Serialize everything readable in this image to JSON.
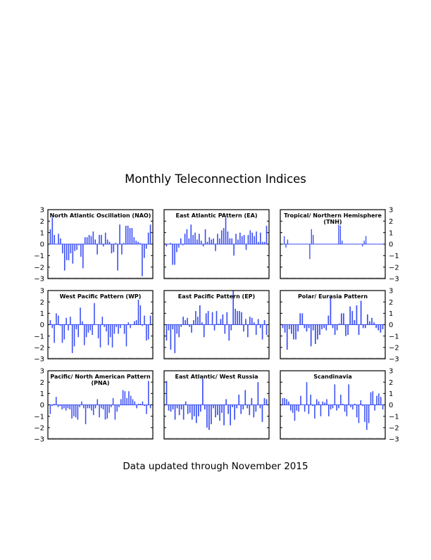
{
  "header": {
    "title": "Monthly Teleconnection Indices"
  },
  "footer": {
    "note": "Data updated through November 2015"
  },
  "style": {
    "bar_color": "#3a4ef2",
    "axis_color": "#000000",
    "zero_line_color": "#3a4ef2"
  },
  "chart_data": [
    {
      "type": "bar",
      "title": "North Atlantic Oscillation (NAO)",
      "ylim": [
        -3,
        3
      ],
      "yticks": [
        3,
        2,
        1,
        0,
        -1,
        -2,
        -3
      ],
      "yaxis_side": "left",
      "values": [
        1.3,
        2.3,
        0.8,
        0.0,
        0.9,
        0.5,
        -0.8,
        -2.3,
        -1.4,
        -1.4,
        -0.8,
        -1.7,
        -0.6,
        -0.5,
        -0.1,
        -1.1,
        -2.1,
        0.6,
        0.6,
        0.8,
        0.7,
        1.1,
        0.4,
        -0.9,
        0.8,
        0.8,
        -0.2,
        1.0,
        0.4,
        0.2,
        -0.8,
        -0.7,
        0.1,
        -2.3,
        1.7,
        -0.9,
        0.1,
        1.6,
        1.6,
        1.4,
        1.4,
        0.6,
        0.3,
        0.2,
        0.1,
        -2.8,
        -1.2,
        -0.4,
        1.0,
        1.7
      ]
    },
    {
      "type": "bar",
      "title": "East Atlantic PAttern (EA)",
      "ylim": [
        -3,
        3
      ],
      "yticks": [
        3,
        2,
        1,
        0,
        -1,
        -2,
        -3
      ],
      "yaxis_side": "none",
      "values": [
        -0.2,
        0.0,
        0.1,
        -1.8,
        -1.8,
        -0.7,
        -0.3,
        0.5,
        -0.1,
        0.9,
        1.3,
        0.5,
        1.7,
        0.8,
        1.0,
        0.4,
        0.9,
        0.3,
        -0.2,
        1.3,
        0.2,
        0.6,
        0.4,
        0.5,
        -0.6,
        0.9,
        0.5,
        1.2,
        1.4,
        2.3,
        1.1,
        0.5,
        0.5,
        -1.0,
        0.9,
        0.4,
        1.0,
        0.7,
        0.8,
        -0.5,
        0.8,
        1.2,
        1.0,
        0.7,
        1.1,
        0.2,
        1.0,
        0.2,
        0.2,
        1.6
      ]
    },
    {
      "type": "bar",
      "title": "Tropical/ Northern Hemisphere (TNH)",
      "ylim": [
        -3,
        3
      ],
      "yticks": [
        3,
        2,
        1,
        0,
        -1,
        -2,
        -3
      ],
      "yaxis_side": "right",
      "values": [
        0.0,
        0.7,
        -0.3,
        0.4,
        0.0,
        0.0,
        0.0,
        0.0,
        0.0,
        0.0,
        0.0,
        0.0,
        0.0,
        0.0,
        0.0,
        0.0,
        -1.3,
        1.3,
        0.8,
        0.0,
        0.0,
        0.0,
        0.0,
        0.0,
        0.0,
        0.0,
        0.0,
        0.0,
        0.0,
        0.0,
        0.0,
        0.0,
        0.0,
        1.7,
        1.6,
        0.3,
        0.0,
        0.0,
        0.0,
        0.0,
        0.0,
        0.0,
        0.0,
        0.0,
        0.0,
        0.0,
        0.0,
        -0.2,
        0.3,
        0.7,
        0.0,
        0.0,
        0.0,
        0.0,
        0.0,
        0.0,
        0.0,
        0.0,
        0.0,
        0.0
      ]
    },
    {
      "type": "bar",
      "title": "West Pacific Pattern (WP)",
      "ylim": [
        -3,
        3
      ],
      "yticks": [
        3,
        2,
        1,
        0,
        -1,
        -2,
        -3
      ],
      "yaxis_side": "left",
      "values": [
        0.4,
        -0.3,
        -1.6,
        1.0,
        0.8,
        -0.1,
        -1.6,
        -1.3,
        0.6,
        -0.5,
        0.7,
        -2.5,
        -1.9,
        -0.4,
        -1.1,
        1.5,
        0.3,
        -1.8,
        -1.1,
        -0.7,
        -0.5,
        -0.9,
        1.9,
        0.0,
        -1.2,
        -2.0,
        0.7,
        -0.2,
        -0.6,
        -1.8,
        -1.1,
        -2.0,
        -0.8,
        -0.2,
        -0.8,
        -0.3,
        0.0,
        -0.8,
        -1.9,
        0.2,
        -0.3,
        0.0,
        0.3,
        0.4,
        2.2,
        1.7,
        -0.1,
        0.8,
        -1.4,
        -1.3,
        0.8
      ]
    },
    {
      "type": "bar",
      "title": "East Pacific Pattern (EP)",
      "ylim": [
        -3,
        3
      ],
      "yticks": [
        3,
        2,
        1,
        0,
        -1,
        -2,
        -3
      ],
      "yaxis_side": "none",
      "values": [
        -1.4,
        -0.5,
        -2.2,
        -0.4,
        -2.5,
        -0.8,
        -1.1,
        -0.2,
        0.7,
        0.4,
        0.6,
        -0.2,
        -0.7,
        0.4,
        1.2,
        0.7,
        1.7,
        0.2,
        -1.1,
        1.0,
        1.2,
        0.0,
        1.1,
        -0.5,
        1.2,
        0.1,
        0.5,
        0.9,
        -0.8,
        1.1,
        -1.4,
        -0.5,
        3.0,
        1.4,
        1.2,
        1.2,
        1.1,
        -0.6,
        0.5,
        -1.1,
        0.7,
        0.6,
        0.2,
        -0.9,
        0.5,
        -0.3,
        -1.3,
        0.4,
        -0.9
      ]
    },
    {
      "type": "bar",
      "title": "Polar/ Eurasia Pattern",
      "ylim": [
        -3,
        3
      ],
      "yticks": [
        3,
        2,
        1,
        0,
        -1,
        -2,
        -3
      ],
      "yaxis_side": "right",
      "values": [
        -0.3,
        -0.7,
        -2.2,
        -0.4,
        -0.8,
        -1.3,
        -1.3,
        -0.6,
        1.0,
        1.0,
        -0.3,
        -0.6,
        -0.3,
        -1.9,
        -0.5,
        -1.7,
        -1.3,
        -0.9,
        -0.4,
        -0.3,
        -0.5,
        0.8,
        2.4,
        -0.3,
        -0.9,
        -0.5,
        0.1,
        1.0,
        1.0,
        -1.0,
        -0.9,
        1.6,
        1.2,
        0.4,
        1.7,
        -0.9,
        2.1,
        -0.3,
        -0.3,
        0.9,
        0.3,
        0.6,
        0.2,
        -0.3,
        -0.5,
        -0.7,
        -0.4
      ]
    },
    {
      "type": "bar",
      "title": "Pacific/ North American Pattern (PNA)",
      "ylim": [
        -3,
        3
      ],
      "yticks": [
        3,
        2,
        1,
        0,
        -1,
        -2,
        -3
      ],
      "yaxis_side": "left",
      "values": [
        -0.8,
        -0.1,
        0.1,
        0.7,
        -0.2,
        -0.1,
        -0.4,
        -0.3,
        -0.5,
        -0.3,
        -0.4,
        -1.2,
        -1.0,
        -1.1,
        -1.3,
        -0.2,
        0.3,
        -0.3,
        -1.7,
        -0.3,
        -0.3,
        -0.5,
        -0.9,
        -0.3,
        0.5,
        -1.1,
        -0.3,
        -0.4,
        -1.3,
        -1.2,
        -0.7,
        -0.2,
        0.6,
        -1.3,
        -0.6,
        -0.2,
        0.5,
        1.3,
        1.2,
        0.6,
        1.2,
        0.8,
        0.5,
        0.3,
        -0.3,
        0.1,
        0.1,
        0.3,
        -0.1,
        -0.8,
        2.1,
        -0.3
      ]
    },
    {
      "type": "bar",
      "title": "East Atlantic/ West Russia",
      "ylim": [
        -3,
        3
      ],
      "yticks": [
        3,
        2,
        1,
        0,
        -1,
        -2,
        -3
      ],
      "yaxis_side": "none",
      "values": [
        2.1,
        -0.5,
        -0.6,
        -0.4,
        -1.3,
        -0.3,
        -0.9,
        -0.4,
        -1.3,
        0.3,
        -0.8,
        -0.7,
        -1.3,
        -1.0,
        -1.6,
        -1.0,
        -0.6,
        2.3,
        -0.4,
        -2.0,
        -2.2,
        -1.7,
        -0.3,
        -1.1,
        -0.9,
        -1.4,
        -0.7,
        -1.8,
        0.5,
        -0.8,
        -1.8,
        -0.2,
        -1.3,
        -0.3,
        0.9,
        -0.8,
        -0.4,
        1.3,
        -0.3,
        -0.9,
        0.6,
        -1.1,
        -0.6,
        2.0,
        -0.3,
        -1.5,
        0.6,
        0.5
      ]
    },
    {
      "type": "bar",
      "title": "Scandinavia",
      "ylim": [
        -3,
        3
      ],
      "yticks": [
        3,
        2,
        1,
        0,
        -1,
        -2,
        -3
      ],
      "yaxis_side": "right",
      "values": [
        0.6,
        0.6,
        0.5,
        0.3,
        -0.5,
        -0.7,
        -1.4,
        -0.5,
        -0.6,
        0.8,
        0.0,
        -0.6,
        2.0,
        -0.8,
        0.9,
        -0.1,
        -1.2,
        0.5,
        0.3,
        -1.0,
        0.3,
        0.2,
        0.5,
        -1.0,
        -0.4,
        -0.3,
        1.8,
        -0.5,
        -0.3,
        0.9,
        0.1,
        -0.6,
        -1.0,
        1.8,
        -0.2,
        -0.4,
        0.1,
        -1.1,
        -1.6,
        0.4,
        -0.1,
        -1.5,
        -2.2,
        -1.6,
        1.1,
        1.2,
        -0.5,
        0.8,
        1.0,
        0.7,
        -0.4
      ]
    }
  ]
}
